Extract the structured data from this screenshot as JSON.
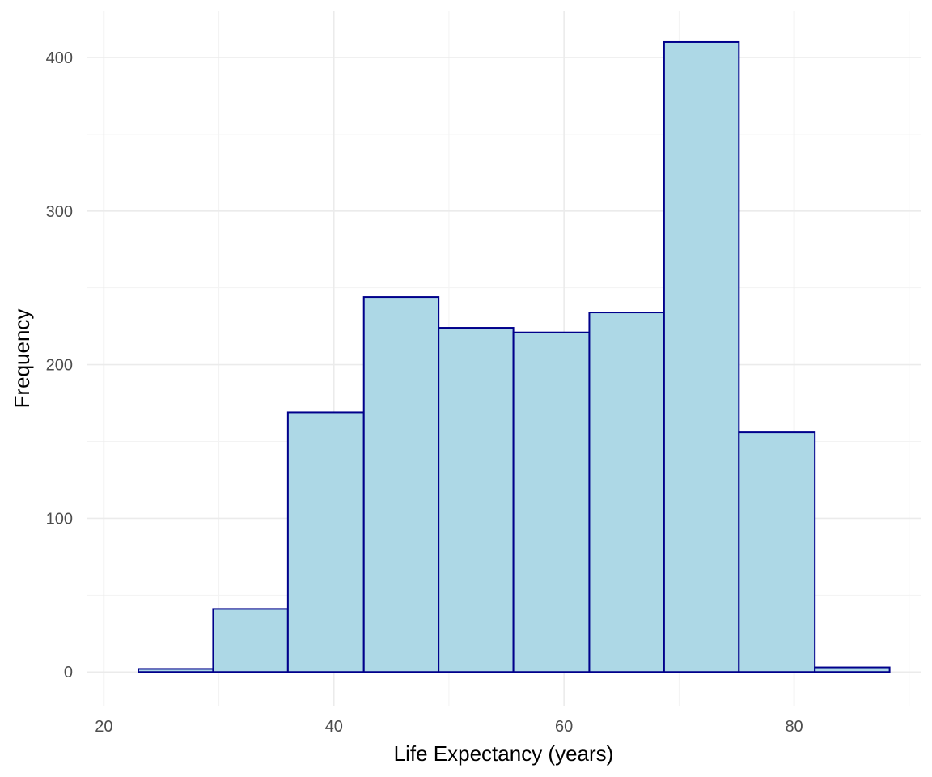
{
  "chart_data": {
    "type": "bar",
    "subtype": "histogram",
    "xlabel": "Life Expectancy (years)",
    "ylabel": "Frequency",
    "xlim": [
      18.5,
      91.0
    ],
    "ylim": [
      -22,
      430
    ],
    "x_ticks": [
      20,
      40,
      60,
      80
    ],
    "x_tick_labels": [
      "20",
      "40",
      "60",
      "80"
    ],
    "x_minor_ticks": [
      30,
      50,
      70,
      90
    ],
    "y_ticks": [
      0,
      100,
      200,
      300,
      400
    ],
    "y_tick_labels": [
      "0",
      "100",
      "200",
      "300",
      "400"
    ],
    "y_minor_ticks": [
      50,
      150,
      250,
      350
    ],
    "bins": [
      {
        "x0": 23.0,
        "x1": 29.5,
        "count": 2
      },
      {
        "x0": 29.5,
        "x1": 36.0,
        "count": 41
      },
      {
        "x0": 36.0,
        "x1": 42.6,
        "count": 169
      },
      {
        "x0": 42.6,
        "x1": 49.1,
        "count": 244
      },
      {
        "x0": 49.1,
        "x1": 55.6,
        "count": 224
      },
      {
        "x0": 55.6,
        "x1": 62.2,
        "count": 221
      },
      {
        "x0": 62.2,
        "x1": 68.7,
        "count": 234
      },
      {
        "x0": 68.7,
        "x1": 75.2,
        "count": 410
      },
      {
        "x0": 75.2,
        "x1": 81.8,
        "count": 156
      },
      {
        "x0": 81.8,
        "x1": 88.3,
        "count": 3
      }
    ],
    "grid": true,
    "legend": "none",
    "colors": {
      "bar_fill": "#add8e6",
      "bar_stroke": "#00008b",
      "grid_major": "#ebebeb",
      "grid_minor": "#f3f3f3",
      "tick_text": "#4d4d4d",
      "title_text": "#000000"
    }
  }
}
